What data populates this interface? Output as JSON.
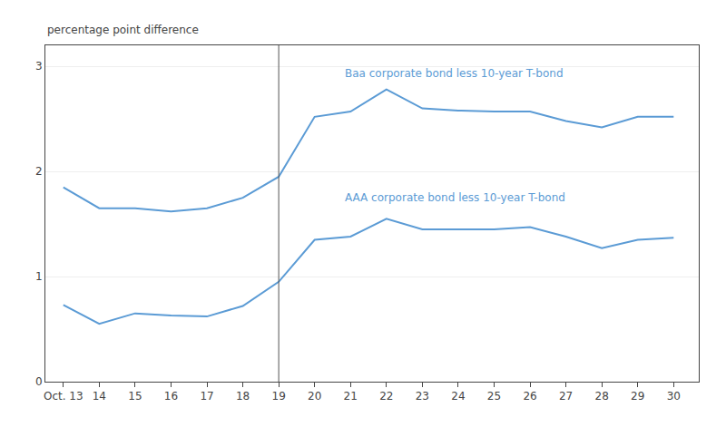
{
  "chart_data": {
    "type": "line",
    "ylabel": "percentage point difference",
    "x": [
      13,
      14,
      15,
      16,
      17,
      18,
      19,
      20,
      21,
      22,
      23,
      24,
      25,
      26,
      27,
      28,
      29,
      30
    ],
    "series": [
      {
        "color": "#5b9bd5",
        "values": [
          1.85,
          1.65,
          1.65,
          1.62,
          1.65,
          1.75,
          1.95,
          2.52,
          2.57,
          2.78,
          2.6,
          2.58,
          2.57,
          2.57,
          2.48,
          2.42,
          2.52,
          2.52
        ]
      },
      {
        "color": "#5b9bd5",
        "values": [
          0.73,
          0.55,
          0.65,
          0.63,
          0.62,
          0.72,
          0.95,
          1.35,
          1.38,
          1.55,
          1.45,
          1.45,
          1.45,
          1.47,
          1.38,
          1.27,
          1.35,
          1.37
        ]
      }
    ],
    "annotations": [
      {
        "text": "Baa corporate bond less 10-year T-bond",
        "x": 20.8,
        "y": 2.93,
        "color": "#5b9bd5"
      },
      {
        "text": "AAA corporate bond less 10-year T-bond",
        "x": 20.8,
        "y": 1.75,
        "color": "#5b9bd5"
      }
    ],
    "vline": {
      "x": 19,
      "color": "#555555"
    },
    "xlim": [
      12.5,
      30.7
    ],
    "xticks": [
      {
        "value": 13,
        "label": "Oct. 13"
      },
      14,
      15,
      16,
      17,
      18,
      19,
      20,
      21,
      22,
      23,
      24,
      25,
      26,
      27,
      28,
      29,
      30
    ],
    "ylim": [
      0,
      3.2
    ],
    "yticks": [
      0,
      1,
      2,
      3
    ],
    "grid": true
  }
}
